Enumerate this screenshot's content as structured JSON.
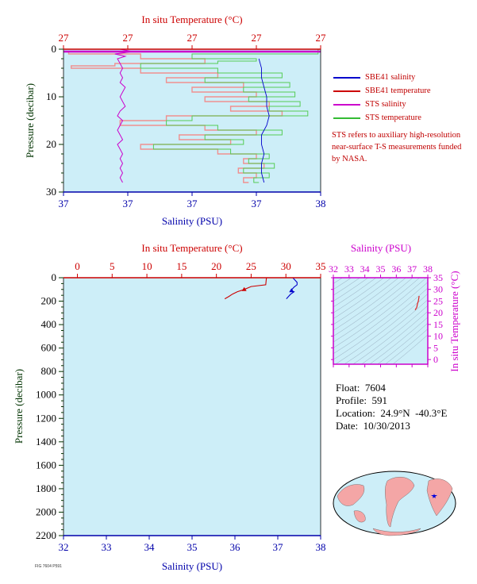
{
  "footnote": "FIG 7604 P591 ",
  "info": {
    "float_label": "Float:",
    "float_value": "7604",
    "profile_label": "Profile:",
    "profile_value": "591",
    "location_label": "Location:",
    "location_value": "24.9°N  -40.3°E",
    "date_label": "Date:",
    "date_value": "10/30/2013"
  },
  "legend": [
    {
      "label": "SBE41 salinity",
      "color": "#0000cc"
    },
    {
      "label": "SBE41 temperature",
      "color": "#cc0000"
    },
    {
      "label": "STS salinity",
      "color": "#cc00cc"
    },
    {
      "label": "STS temperature",
      "color": "#33bb33"
    }
  ],
  "note": "STS refers to auxiliary high-resolution near-surface T-S measurements funded by NASA.",
  "colors": {
    "panel_bg": "#cdeef8",
    "temp": "#cc0000",
    "sal": "#0000aa",
    "sts_sal": "#cc00cc",
    "sts_temp": "#33bb33",
    "pressure_axis": "#003300",
    "ts_axis": "#cc00cc"
  },
  "chart_data": [
    {
      "type": "line",
      "name": "near-surface",
      "top_axis_label": "In situ Temperature (°C)",
      "top_ticks": [
        "27",
        "27",
        "27",
        "27",
        "27"
      ],
      "bottom_axis_label": "Salinity (PSU)",
      "bottom_ticks": [
        "37",
        "37",
        "37",
        "37",
        "38"
      ],
      "ylabel": "Pressure (decibar)",
      "y_ticks": [
        0,
        10,
        20,
        30
      ],
      "ylim": [
        30,
        0
      ],
      "sts_salinity": {
        "p": [
          0,
          0.5,
          1,
          1.5,
          2,
          3,
          4,
          5,
          6,
          7,
          8,
          9,
          10,
          11,
          12,
          13,
          14,
          15,
          16,
          17,
          18,
          19,
          20,
          21,
          22,
          23,
          24,
          25,
          26,
          27,
          28
        ],
        "x": [
          0.22,
          0.27,
          0.2,
          0.24,
          0.21,
          0.22,
          0.23,
          0.22,
          0.23,
          0.22,
          0.24,
          0.23,
          0.22,
          0.23,
          0.24,
          0.22,
          0.21,
          0.23,
          0.22,
          0.21,
          0.22,
          0.23,
          0.21,
          0.22,
          0.23,
          0.22,
          0.23,
          0.22,
          0.23,
          0.22,
          0.23
        ]
      },
      "sbe41_salinity": {
        "p": [
          2,
          4,
          6,
          8,
          10,
          12,
          14,
          16,
          18,
          20,
          22,
          24,
          26,
          28
        ],
        "x": [
          0.76,
          0.77,
          0.77,
          0.78,
          0.79,
          0.79,
          0.8,
          0.79,
          0.77,
          0.77,
          0.78,
          0.77,
          0.77,
          0.78
        ]
      },
      "sbe41_temperature": {
        "p": [
          0,
          0.5,
          1,
          2,
          3,
          3.5,
          4,
          5,
          6,
          7,
          8,
          9,
          10,
          11,
          12,
          13,
          14,
          15,
          16,
          17,
          18,
          19,
          20,
          21,
          22,
          23,
          24,
          25,
          26,
          27,
          28
        ],
        "x": [
          0.99,
          0.02,
          0.3,
          0.55,
          0.2,
          0.03,
          0.3,
          0.6,
          0.4,
          0.7,
          0.5,
          0.75,
          0.55,
          0.8,
          0.65,
          0.85,
          0.4,
          0.22,
          0.55,
          0.75,
          0.45,
          0.65,
          0.3,
          0.6,
          0.75,
          0.7,
          0.78,
          0.68,
          0.75,
          0.7,
          0.72
        ]
      },
      "sts_temperature": {
        "p": [
          0,
          1,
          2,
          2.5,
          3,
          4,
          5,
          6,
          7,
          8,
          9,
          10,
          11,
          12,
          13,
          14,
          15,
          16,
          17,
          18,
          19,
          20,
          21,
          22,
          23,
          24,
          25,
          26,
          27,
          28
        ],
        "x": [
          0.99,
          0.5,
          0.75,
          0.6,
          0.3,
          0.6,
          0.85,
          0.55,
          0.88,
          0.7,
          0.9,
          0.72,
          0.92,
          0.8,
          0.95,
          0.5,
          0.4,
          0.6,
          0.85,
          0.55,
          0.7,
          0.35,
          0.65,
          0.8,
          0.72,
          0.82,
          0.7,
          0.8,
          0.74,
          0.76
        ]
      }
    },
    {
      "type": "line",
      "name": "full-profile",
      "top_axis_label": "In situ Temperature (°C)",
      "top_ticks": [
        0,
        5,
        10,
        15,
        20,
        25,
        30,
        35
      ],
      "xlim_temp": [
        -2,
        35
      ],
      "bottom_axis_label": "Salinity (PSU)",
      "bottom_ticks": [
        32,
        33,
        34,
        35,
        36,
        37,
        38
      ],
      "xlim_sal": [
        32,
        38
      ],
      "ylabel": "Pressure (decibar)",
      "y_ticks": [
        0,
        200,
        400,
        600,
        800,
        1000,
        1200,
        1400,
        1600,
        1800,
        2000,
        2200
      ],
      "ylim": [
        2200,
        0
      ],
      "temperature": {
        "p": [
          0,
          60,
          75,
          100,
          120,
          140,
          160,
          180
        ],
        "t": [
          27.2,
          27.1,
          25.0,
          24.0,
          23.0,
          22.3,
          21.8,
          21.2
        ]
      },
      "salinity": {
        "p": [
          0,
          40,
          60,
          80,
          100,
          110,
          120,
          140,
          160,
          180
        ],
        "s": [
          37.35,
          37.45,
          37.45,
          37.38,
          37.33,
          37.32,
          37.38,
          37.3,
          37.25,
          37.2
        ]
      }
    },
    {
      "type": "scatter",
      "name": "T-S diagram",
      "top_axis_label": "Salinity (PSU)",
      "x_ticks": [
        32,
        33,
        34,
        35,
        36,
        37,
        38
      ],
      "xlim": [
        32,
        38
      ],
      "right_axis_label": "In situ Temperature (°C)",
      "y_ticks": [
        0,
        5,
        10,
        15,
        20,
        25,
        30,
        35
      ],
      "ylim": [
        -2,
        35
      ],
      "ts_curve": {
        "s": [
          37.2,
          37.25,
          37.3,
          37.32,
          37.35,
          37.4,
          37.45
        ],
        "t": [
          21.2,
          21.8,
          22.3,
          23.0,
          24.0,
          25.0,
          27.2
        ]
      }
    }
  ]
}
